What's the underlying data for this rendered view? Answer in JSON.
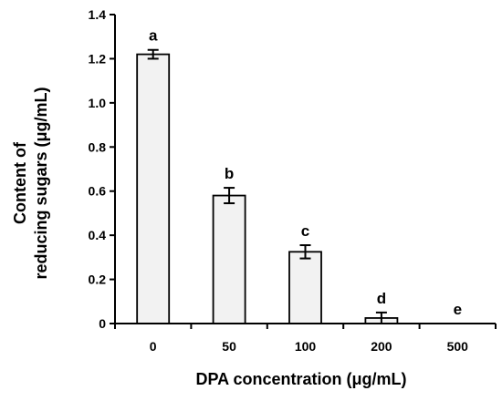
{
  "chart_data": {
    "type": "bar",
    "categories": [
      "0",
      "50",
      "100",
      "200",
      "500"
    ],
    "values": [
      1.22,
      0.58,
      0.325,
      0.025,
      0.0
    ],
    "errors": [
      0.02,
      0.035,
      0.03,
      0.025,
      0.0
    ],
    "significance_labels": [
      "a",
      "b",
      "c",
      "d",
      "e"
    ],
    "xlabel": "DPA concentration (μg/mL)",
    "ylabel_lines": [
      "Content of",
      "reducing sugars (μg/mL)"
    ],
    "ylim": [
      0,
      1.4
    ],
    "yticks": [
      "0",
      "0.2",
      "0.4",
      "0.6",
      "0.8",
      "1.0",
      "1.2",
      "1.4"
    ],
    "grid": false,
    "legend": "none",
    "bar_fill": "#f2f2f2",
    "bar_stroke": "#000000"
  }
}
